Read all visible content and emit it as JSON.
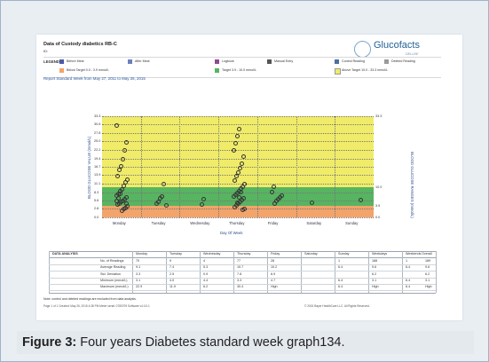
{
  "document": {
    "title": "Data of Custody diabetics RB-C",
    "subtitle": "ID:",
    "logo_text": "Glucofacts",
    "logo_small": "DELUXE"
  },
  "legend": {
    "label": "LEGEND",
    "items": [
      {
        "label": "Before Meal",
        "swatch_color": "#4b5ba8"
      },
      {
        "label": "After Meal",
        "swatch_color": "#6c7fbf"
      },
      {
        "label": "Logbook",
        "swatch_color": "#8e4b8f"
      },
      {
        "label": "Manual Entry",
        "swatch_color": "#555555"
      },
      {
        "label": "Control Reading",
        "swatch_color": "#4b6f9f"
      },
      {
        "label": "Deleted Reading",
        "swatch_color": "#9a9a9a"
      },
      {
        "label": "Below Target 0.0 - 3.9 mmol/L",
        "swatch_color": "#f3a46a"
      },
      {
        "label": "Target 3.9 - 10.0 mmol/L",
        "swatch_color": "#57b461"
      },
      {
        "label": "Above Target 10.0 - 33.3 mmol/L",
        "swatch_color": "#f0ec69"
      }
    ]
  },
  "report_line": "Report Standard Week from May 27, 2011 to May 26, 2015",
  "chart_data": {
    "type": "scatter",
    "title": "",
    "xlabel": "Day Of Week",
    "ylabel_left": "BLOOD GLUCOSE VALUE (mmol/L)",
    "ylabel_right": "BLOOD GLUCOSE RANGES (mmol/L)",
    "ylim": [
      0.0,
      33.3
    ],
    "y_ticks_left": [
      "33.3",
      "30.6",
      "27.8",
      "25.0",
      "22.2",
      "19.4",
      "16.7",
      "13.9",
      "11.1",
      "8.3",
      "5.6",
      "2.8",
      "0.0"
    ],
    "y_ticks_right": [
      "33.3",
      "10.0",
      "3.9",
      "0.0"
    ],
    "categories": [
      "Monday",
      "Tuesday",
      "Wednesday",
      "Thursday",
      "Friday",
      "Saturday",
      "Sunday"
    ],
    "bands": [
      {
        "from": 0.0,
        "to": 3.9,
        "color": "#f3a46a"
      },
      {
        "from": 3.9,
        "to": 10.0,
        "color": "#57b461"
      },
      {
        "from": 10.0,
        "to": 33.3,
        "color": "#f0ec69"
      }
    ],
    "points": [
      {
        "day": 0,
        "v": 30.6
      },
      {
        "day": 0,
        "v": 25.0
      },
      {
        "day": 0,
        "v": 22.3
      },
      {
        "day": 0,
        "v": 19.4
      },
      {
        "day": 0,
        "v": 17.2
      },
      {
        "day": 0,
        "v": 15.8
      },
      {
        "day": 0,
        "v": 13.9
      },
      {
        "day": 0,
        "v": 12.7
      },
      {
        "day": 0,
        "v": 11.8
      },
      {
        "day": 0,
        "v": 10.6
      },
      {
        "day": 0,
        "v": 9.6
      },
      {
        "day": 0,
        "v": 8.9
      },
      {
        "day": 0,
        "v": 8.1
      },
      {
        "day": 0,
        "v": 7.4
      },
      {
        "day": 0,
        "v": 6.8
      },
      {
        "day": 0,
        "v": 6.2
      },
      {
        "day": 0,
        "v": 5.7
      },
      {
        "day": 0,
        "v": 5.3
      },
      {
        "day": 0,
        "v": 4.9
      },
      {
        "day": 0,
        "v": 4.4
      },
      {
        "day": 0,
        "v": 4.0
      },
      {
        "day": 0,
        "v": 3.5
      },
      {
        "day": 0,
        "v": 3.0
      },
      {
        "day": 0,
        "v": 2.4
      },
      {
        "day": 0,
        "v": 7.9
      },
      {
        "day": 0,
        "v": 6.7
      },
      {
        "day": 0,
        "v": 5.8
      },
      {
        "day": 0,
        "v": 4.7
      },
      {
        "day": 1,
        "v": 11.2
      },
      {
        "day": 1,
        "v": 7.3
      },
      {
        "day": 1,
        "v": 6.7
      },
      {
        "day": 1,
        "v": 5.4
      },
      {
        "day": 1,
        "v": 4.9
      },
      {
        "day": 1,
        "v": 4.3
      },
      {
        "day": 2,
        "v": 6.2
      },
      {
        "day": 2,
        "v": 4.6
      },
      {
        "day": 3,
        "v": 29.3
      },
      {
        "day": 3,
        "v": 26.9
      },
      {
        "day": 3,
        "v": 24.8
      },
      {
        "day": 3,
        "v": 22.4
      },
      {
        "day": 3,
        "v": 20.2
      },
      {
        "day": 3,
        "v": 18.1
      },
      {
        "day": 3,
        "v": 16.6
      },
      {
        "day": 3,
        "v": 15.0
      },
      {
        "day": 3,
        "v": 13.8
      },
      {
        "day": 3,
        "v": 12.5
      },
      {
        "day": 3,
        "v": 11.3
      },
      {
        "day": 3,
        "v": 10.4
      },
      {
        "day": 3,
        "v": 9.7
      },
      {
        "day": 3,
        "v": 9.0
      },
      {
        "day": 3,
        "v": 8.4
      },
      {
        "day": 3,
        "v": 7.8
      },
      {
        "day": 3,
        "v": 7.1
      },
      {
        "day": 3,
        "v": 6.6
      },
      {
        "day": 3,
        "v": 5.9
      },
      {
        "day": 3,
        "v": 5.3
      },
      {
        "day": 3,
        "v": 4.8
      },
      {
        "day": 3,
        "v": 4.2
      },
      {
        "day": 3,
        "v": 3.7
      },
      {
        "day": 3,
        "v": 3.1
      },
      {
        "day": 3,
        "v": 2.7
      },
      {
        "day": 3,
        "v": 8.7
      },
      {
        "day": 3,
        "v": 6.8
      },
      {
        "day": 3,
        "v": 5.0
      },
      {
        "day": 4,
        "v": 10.5
      },
      {
        "day": 4,
        "v": 8.7
      },
      {
        "day": 4,
        "v": 7.4
      },
      {
        "day": 4,
        "v": 6.9
      },
      {
        "day": 4,
        "v": 6.2
      },
      {
        "day": 4,
        "v": 5.6
      },
      {
        "day": 4,
        "v": 4.9
      },
      {
        "day": 5,
        "v": 5.1
      },
      {
        "day": 6,
        "v": 6.0
      }
    ]
  },
  "table": {
    "headers": [
      "DATA ANALYSIS",
      "Monday",
      "Tuesday",
      "Wednesday",
      "Thursday",
      "Friday",
      "Saturday",
      "Sunday",
      "Weekdays",
      "Weekends",
      "Overall"
    ],
    "rows": [
      {
        "label": "No. of Readings",
        "values": [
          "70",
          "9",
          "4",
          "77",
          "28",
          "",
          "1",
          "188",
          "1",
          "189"
        ]
      },
      {
        "label": "Average Reading",
        "values": [
          "9.1",
          "7.4",
          "5.3",
          "10.7",
          "10.2",
          "",
          "6.4",
          "9.6",
          "6.4",
          "9.6"
        ]
      },
      {
        "label": "Std. Deviation",
        "values": [
          "3.3",
          "2.5",
          "0.9",
          "7.8",
          "6.9",
          "",
          "",
          "6.2",
          "",
          "6.2"
        ]
      },
      {
        "label": "Minimum (mmol/L)",
        "values": [
          "3.1",
          "4.0",
          "4.4",
          "3.3",
          "4.7",
          "",
          "6.4",
          "3.1",
          "6.4",
          "3.1"
        ]
      },
      {
        "label": "Maximum (mmol/L)",
        "values": [
          "22.9",
          "11.9",
          "6.2",
          "30.4",
          "High",
          "",
          "6.4",
          "High",
          "6.4",
          "High"
        ]
      }
    ]
  },
  "note": "Note: control and deleted readings are excluded from data analysis.",
  "footer_left": "Page 1 of 1     Created: May 26, 2015     4:38 PM     Meter serial: 0780709     Software v4.0.0.1",
  "footer_right": "© 2015 Bayer HealthCare LLC. All Rights Reserved.",
  "caption": {
    "prefix": "Figure 3:",
    "text": " Four years Diabetes standard week graph134."
  }
}
